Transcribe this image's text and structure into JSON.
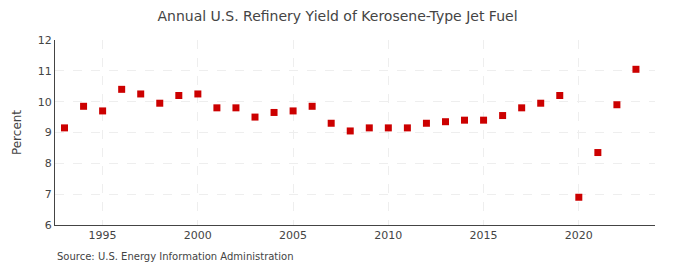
{
  "chart_data": {
    "type": "scatter",
    "title": "Annual U.S. Refinery Yield of Kerosene-Type Jet Fuel",
    "ylabel": "Percent",
    "annotations": [
      "Source: U.S. Energy Information Administration"
    ],
    "x": [
      1993,
      1994,
      1995,
      1996,
      1997,
      1998,
      1999,
      2000,
      2001,
      2002,
      2003,
      2004,
      2005,
      2006,
      2007,
      2008,
      2009,
      2010,
      2011,
      2012,
      2013,
      2014,
      2015,
      2016,
      2017,
      2018,
      2019,
      2020,
      2021,
      2022,
      2023
    ],
    "values": [
      9.15,
      9.85,
      9.7,
      10.4,
      10.25,
      9.95,
      10.2,
      10.25,
      9.8,
      9.8,
      9.5,
      9.65,
      9.7,
      9.85,
      9.3,
      9.05,
      9.15,
      9.15,
      9.15,
      9.3,
      9.35,
      9.4,
      9.4,
      9.55,
      9.8,
      9.95,
      10.2,
      6.9,
      8.35,
      9.9,
      11.05
    ],
    "color": "#cc0000",
    "marker": "square",
    "xlim": [
      1992.5,
      2024
    ],
    "xticks": [
      1995,
      2000,
      2005,
      2010,
      2015,
      2020
    ],
    "ylim": [
      6,
      12
    ],
    "yticks": [
      6,
      7,
      8,
      9,
      10,
      11,
      12
    ],
    "grid": true
  }
}
